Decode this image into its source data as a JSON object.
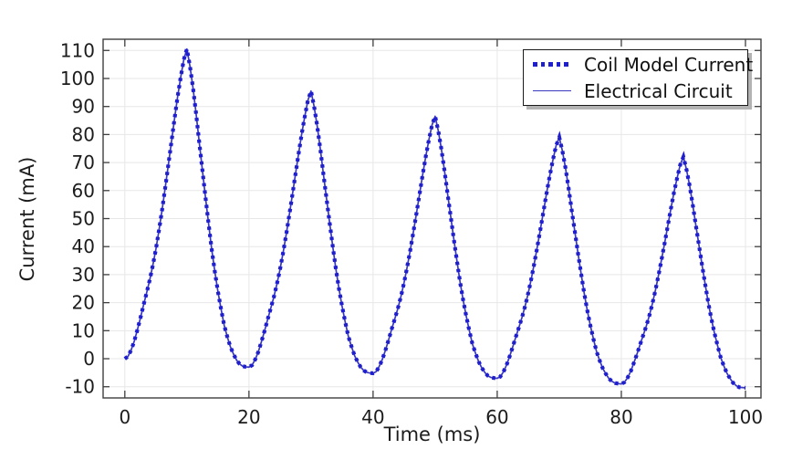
{
  "chart_data": {
    "type": "line",
    "title": "",
    "xlabel": "Time (ms)",
    "ylabel": "Current (mA)",
    "xlim": [
      -3.5,
      102.5
    ],
    "ylim": [
      -14,
      114
    ],
    "xticks": [
      0,
      20,
      40,
      60,
      80,
      100
    ],
    "yticks": [
      -10,
      0,
      10,
      20,
      30,
      40,
      50,
      60,
      70,
      80,
      90,
      100,
      110
    ],
    "grid": true,
    "legend_position": "top-right",
    "colors": {
      "dotted_series": "#1f1fce",
      "solid_series": "#3939c0",
      "grid": "#e7e7e7",
      "axis": "#3f3f3f",
      "text": "#1c1c1c"
    },
    "x_start": 0,
    "x_step": 0.5,
    "shared_y": [
      0.0,
      0.8,
      3.0,
      6.1,
      10.1,
      14.4,
      19.0,
      23.4,
      28.0,
      33.2,
      39.0,
      45.8,
      53.0,
      60.9,
      69.0,
      77.2,
      85.5,
      93.4,
      100.4,
      106.7,
      110.5,
      104.3,
      96.4,
      87.1,
      77.0,
      67.3,
      57.5,
      48.1,
      39.0,
      31.1,
      24.0,
      17.8,
      12.0,
      7.9,
      4.3,
      1.7,
      -0.5,
      -1.9,
      -2.7,
      -2.9,
      -3.0,
      -2.3,
      -0.3,
      2.4,
      6.0,
      9.8,
      13.9,
      17.9,
      21.9,
      26.6,
      31.8,
      37.8,
      44.3,
      51.3,
      58.5,
      65.9,
      73.2,
      80.2,
      86.5,
      92.2,
      95.5,
      90.0,
      83.0,
      74.8,
      65.8,
      57.1,
      48.5,
      40.1,
      32.1,
      25.0,
      18.8,
      13.2,
      8.1,
      4.5,
      1.2,
      -1.1,
      -3.0,
      -4.2,
      -4.9,
      -5.1,
      -5.2,
      -4.6,
      -2.7,
      -0.2,
      3.1,
      6.7,
      10.6,
      14.2,
      18.0,
      22.3,
      27.2,
      32.8,
      38.8,
      45.3,
      52.0,
      58.9,
      65.8,
      72.3,
      78.2,
      83.4,
      86.5,
      81.4,
      74.9,
      67.2,
      58.9,
      50.9,
      42.8,
      35.1,
      27.6,
      21.1,
      15.3,
      10.1,
      5.3,
      2.0,
      -1.0,
      -3.2,
      -4.9,
      -6.1,
      -6.7,
      -6.9,
      -7.0,
      -6.4,
      -4.7,
      -2.3,
      0.8,
      4.2,
      7.8,
      11.2,
      14.8,
      18.8,
      23.4,
      28.6,
      34.3,
      40.4,
      46.7,
      53.1,
      59.6,
      65.7,
      71.2,
      76.1,
      79.0,
      74.2,
      68.1,
      60.9,
      53.0,
      45.5,
      37.9,
      30.6,
      23.6,
      17.4,
      11.9,
      7.1,
      2.6,
      -0.6,
      -3.4,
      -5.4,
      -7.1,
      -8.1,
      -8.7,
      -8.9,
      -9.0,
      -8.4,
      -6.8,
      -4.6,
      -1.6,
      1.5,
      4.9,
      8.2,
      11.5,
      15.3,
      19.6,
      24.5,
      29.9,
      35.6,
      41.5,
      47.6,
      53.7,
      59.5,
      64.6,
      69.3,
      72.0,
      67.5,
      61.8,
      55.0,
      47.7,
      40.6,
      33.5,
      26.7,
      20.1,
      14.3,
      9.2,
      4.7,
      0.5,
      -2.5,
      -5.1,
      -7.0,
      -8.6,
      -9.6,
      -10.2,
      -10.3,
      -10.4
    ],
    "series": [
      {
        "name": "Coil Model Current",
        "style": "dotted",
        "color": "#1f1fce",
        "uses": "shared_y"
      },
      {
        "name": "Electrical Circuit",
        "style": "solid",
        "color": "#3939c0",
        "uses": "shared_y"
      }
    ],
    "peaks": [
      [
        10,
        110.5
      ],
      [
        30,
        95.5
      ],
      [
        50,
        86.5
      ],
      [
        70,
        79
      ],
      [
        90,
        72
      ]
    ],
    "valleys": [
      [
        20,
        -3.0
      ],
      [
        40,
        -5.2
      ],
      [
        60,
        -7.0
      ],
      [
        80,
        -9.0
      ],
      [
        100,
        -10.4
      ]
    ]
  }
}
